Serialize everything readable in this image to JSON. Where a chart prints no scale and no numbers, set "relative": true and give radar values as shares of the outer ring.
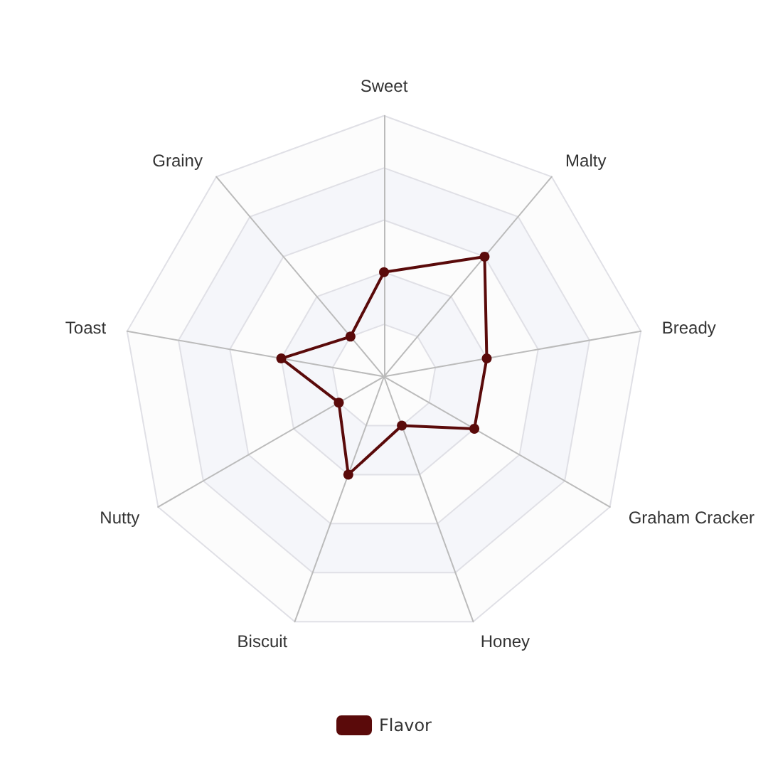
{
  "chart_data": {
    "type": "radar",
    "relative": true,
    "categories": [
      "Sweet",
      "Malty",
      "Bready",
      "Graham Cracker",
      "Honey",
      "Biscuit",
      "Nutty",
      "Toast",
      "Grainy"
    ],
    "series": [
      {
        "name": "Flavor",
        "color": "#5a0a0a",
        "values": [
          0.4,
          0.6,
          0.4,
          0.4,
          0.2,
          0.4,
          0.2,
          0.4,
          0.2
        ]
      }
    ],
    "legend": "bottom",
    "marker": "circle"
  }
}
